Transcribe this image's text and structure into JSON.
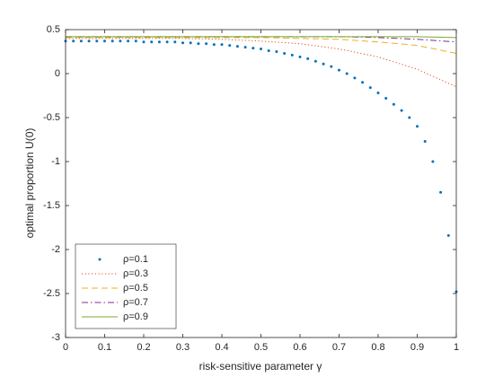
{
  "chart_data": {
    "type": "line",
    "xlabel": "risk-sensitive parameter γ",
    "ylabel": "optimal proportion U(0)",
    "xlim": [
      0,
      1
    ],
    "xticks": [
      0,
      0.1,
      0.2,
      0.3,
      0.4,
      0.5,
      0.6,
      0.7,
      0.8,
      0.9,
      1
    ],
    "ylim": [
      -3,
      0.5
    ],
    "yticks": [
      -3,
      -2.5,
      -2,
      -1.5,
      -1,
      -0.5,
      0,
      0.5
    ],
    "legend": "lower left",
    "series": [
      {
        "name": "ρ=0.1",
        "color": "#0072BD",
        "style": "dots",
        "x": [
          0,
          0.02,
          0.04,
          0.06,
          0.08,
          0.1,
          0.12,
          0.14,
          0.16,
          0.18,
          0.2,
          0.22,
          0.24,
          0.26,
          0.28,
          0.3,
          0.32,
          0.34,
          0.36,
          0.38,
          0.4,
          0.42,
          0.44,
          0.46,
          0.48,
          0.5,
          0.52,
          0.54,
          0.56,
          0.58,
          0.6,
          0.62,
          0.64,
          0.66,
          0.68,
          0.7,
          0.72,
          0.74,
          0.76,
          0.78,
          0.8,
          0.82,
          0.84,
          0.86,
          0.88,
          0.9,
          0.92,
          0.94,
          0.96,
          0.98,
          1
        ],
        "values": [
          0.37,
          0.37,
          0.37,
          0.37,
          0.37,
          0.37,
          0.37,
          0.37,
          0.37,
          0.37,
          0.36,
          0.36,
          0.36,
          0.36,
          0.36,
          0.35,
          0.35,
          0.34,
          0.34,
          0.33,
          0.33,
          0.32,
          0.31,
          0.3,
          0.29,
          0.28,
          0.26,
          0.25,
          0.23,
          0.21,
          0.19,
          0.17,
          0.14,
          0.11,
          0.08,
          0.04,
          0,
          -0.05,
          -0.1,
          -0.16,
          -0.22,
          -0.28,
          -0.35,
          -0.42,
          -0.5,
          -0.6,
          -0.77,
          -1.0,
          -1.35,
          -1.84,
          -2.48
        ]
      },
      {
        "name": "ρ=0.3",
        "color": "#D95319",
        "style": "dotted",
        "x": [
          0,
          0.1,
          0.2,
          0.3,
          0.4,
          0.5,
          0.6,
          0.7,
          0.8,
          0.9,
          1
        ],
        "values": [
          0.4,
          0.4,
          0.4,
          0.4,
          0.39,
          0.37,
          0.34,
          0.28,
          0.19,
          0.05,
          -0.15
        ]
      },
      {
        "name": "ρ=0.5",
        "color": "#EDB120",
        "style": "dashed",
        "x": [
          0,
          0.1,
          0.2,
          0.3,
          0.4,
          0.5,
          0.6,
          0.7,
          0.8,
          0.9,
          1
        ],
        "values": [
          0.41,
          0.41,
          0.41,
          0.41,
          0.41,
          0.41,
          0.4,
          0.39,
          0.36,
          0.32,
          0.23
        ]
      },
      {
        "name": "ρ=0.7",
        "color": "#7E2F8E",
        "style": "dashdot",
        "x": [
          0,
          0.1,
          0.2,
          0.3,
          0.4,
          0.5,
          0.6,
          0.7,
          0.8,
          0.9,
          1
        ],
        "values": [
          0.42,
          0.42,
          0.42,
          0.42,
          0.42,
          0.42,
          0.42,
          0.42,
          0.41,
          0.39,
          0.36
        ]
      },
      {
        "name": "ρ=0.9",
        "color": "#77AC30",
        "style": "solid",
        "x": [
          0,
          0.1,
          0.2,
          0.3,
          0.4,
          0.5,
          0.6,
          0.7,
          0.8,
          0.9,
          1
        ],
        "values": [
          0.42,
          0.42,
          0.42,
          0.42,
          0.42,
          0.42,
          0.42,
          0.42,
          0.42,
          0.42,
          0.41
        ]
      }
    ]
  }
}
